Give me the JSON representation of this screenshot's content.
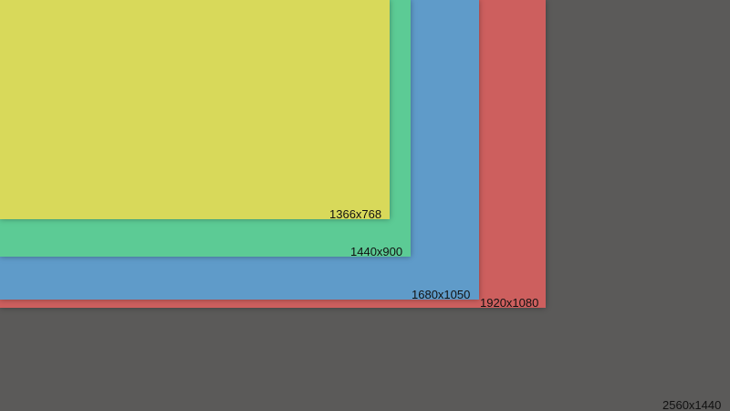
{
  "resolutions": [
    {
      "label": "2560x1440",
      "color": "#5b5a59"
    },
    {
      "label": "1920x1080",
      "color": "#cd5f5e"
    },
    {
      "label": "1680x1050",
      "color": "#5f9bc9"
    },
    {
      "label": "1440x900",
      "color": "#5ccb95"
    },
    {
      "label": "1366x768",
      "color": "#d8d95a"
    }
  ]
}
